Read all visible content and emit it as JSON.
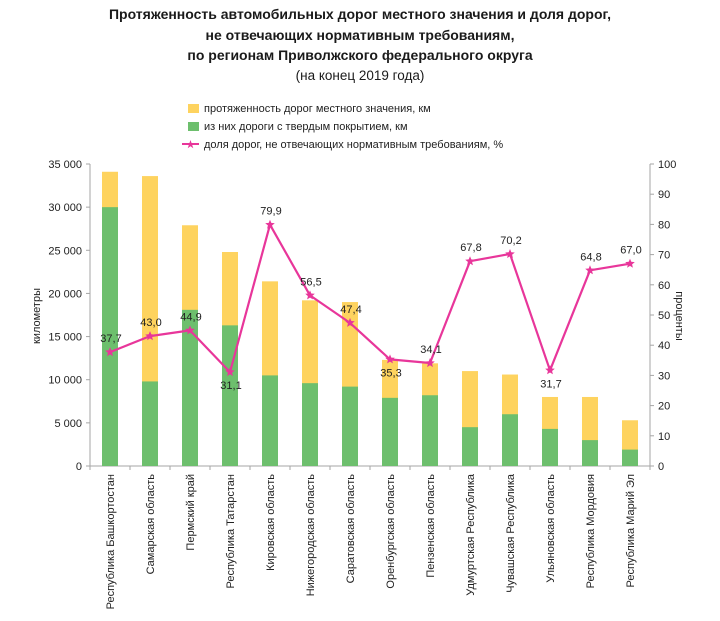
{
  "title_lines": [
    "Протяженность автомобильных дорог местного значения и доля дорог,",
    "не отвечающих нормативным требованиям,",
    "по регионам Приволжского федерального округа"
  ],
  "subtitle": "(на конец 2019 года)",
  "colors": {
    "total": "#fed35f",
    "paved": "#6dbf6d",
    "share": "#e8369a"
  },
  "chart_data": {
    "type": "bar",
    "categories": [
      "Республика Башкортостан",
      "Самарская область",
      "Пермский край",
      "Республика Татарстан",
      "Кировская область",
      "Нижегородская область",
      "Саратовская область",
      "Оренбургская область",
      "Пензенская область",
      "Удмуртская Республика",
      "Чувашская Республика",
      "Ульяновская область",
      "Республика Мордовия",
      "Республика Марий Эл"
    ],
    "series": [
      {
        "name": "протяженность дорог местного значения, км",
        "kind": "bar",
        "axis": "left",
        "values": [
          34100,
          33600,
          27900,
          24800,
          21400,
          19200,
          19000,
          12300,
          11900,
          11000,
          10600,
          8000,
          8000,
          5300
        ]
      },
      {
        "name": "из них дороги с твердым покрытием, км",
        "kind": "bar",
        "axis": "left",
        "values": [
          30000,
          9800,
          18100,
          16300,
          10500,
          9600,
          9200,
          7900,
          8200,
          4500,
          6000,
          4300,
          3000,
          1900
        ]
      },
      {
        "name": "доля дорог, не отвечающих нормативным требованиям, %",
        "kind": "line",
        "axis": "right",
        "values": [
          37.7,
          43.0,
          44.9,
          31.1,
          79.9,
          56.5,
          47.4,
          35.3,
          34.1,
          67.8,
          70.2,
          31.7,
          64.8,
          67.0
        ],
        "labels": [
          "37,7",
          "43,0",
          "44,9",
          "31,1",
          "79,9",
          "56,5",
          "47,4",
          "35,3",
          "34,1",
          "67,8",
          "70,2",
          "31,7",
          "64,8",
          "67,0"
        ]
      }
    ],
    "ylabel": "километры",
    "ylabel_right": "проценты",
    "ylim": [
      0,
      35000
    ],
    "ylim_right": [
      0,
      100
    ],
    "yticks": [
      "0",
      "5 000",
      "10 000",
      "15 000",
      "20 000",
      "25 000",
      "30 000",
      "35 000"
    ],
    "yticks_right": [
      "0",
      "10",
      "20",
      "30",
      "40",
      "50",
      "60",
      "70",
      "80",
      "90",
      "100"
    ],
    "legend_position": "top-left",
    "grid": false
  }
}
